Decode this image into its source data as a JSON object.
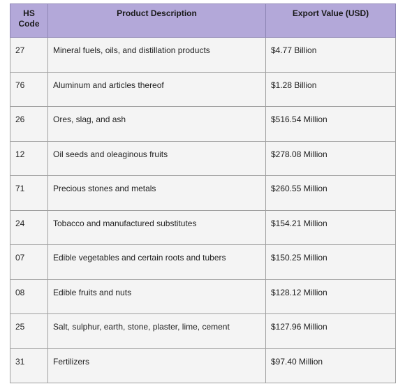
{
  "table": {
    "header": [
      "HS Code",
      "Product Description",
      "Export Value (USD)"
    ],
    "rows": [
      [
        "27",
        "Mineral fuels, oils, and distillation products",
        "$4.77 Billion"
      ],
      [
        "76",
        "Aluminum and articles thereof",
        "$1.28 Billion"
      ],
      [
        "26",
        "Ores, slag, and ash",
        "$516.54 Million"
      ],
      [
        "12",
        "Oil seeds and oleaginous fruits",
        "$278.08 Million"
      ],
      [
        "71",
        "Precious stones and metals",
        "$260.55 Million"
      ],
      [
        "24",
        "Tobacco and manufactured substitutes",
        "$154.21 Million"
      ],
      [
        "07",
        "Edible vegetables and certain roots and tubers",
        "$150.25 Million"
      ],
      [
        "08",
        "Edible fruits and nuts",
        "$128.12 Million"
      ],
      [
        "25",
        "Salt, sulphur, earth, stone, plaster, lime, cement",
        "$127.96 Million"
      ],
      [
        "31",
        "Fertilizers",
        "$97.40 Million"
      ]
    ]
  }
}
